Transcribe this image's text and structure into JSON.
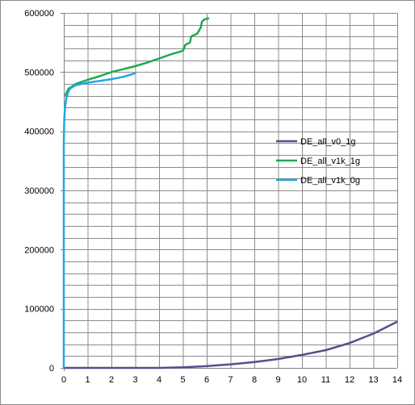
{
  "chart_data": {
    "type": "line",
    "title": "",
    "xlabel": "",
    "ylabel": "",
    "xlim": [
      0,
      14
    ],
    "ylim": [
      0,
      600000
    ],
    "x_ticks": [
      "0",
      "1",
      "2",
      "3",
      "4",
      "5",
      "6",
      "7",
      "8",
      "9",
      "10",
      "11",
      "12",
      "13",
      "14"
    ],
    "y_ticks": [
      "0",
      "100000",
      "200000",
      "300000",
      "400000",
      "500000",
      "600000"
    ],
    "grid": true,
    "legend_position": "right",
    "series": [
      {
        "name": "DE_all_v0_1g",
        "color": "#5f4b8b",
        "points": [
          [
            0,
            0
          ],
          [
            4,
            0
          ],
          [
            5,
            1000
          ],
          [
            6,
            3000
          ],
          [
            7,
            6000
          ],
          [
            8,
            10000
          ],
          [
            9,
            15000
          ],
          [
            10,
            22000
          ],
          [
            11,
            30000
          ],
          [
            12,
            42000
          ],
          [
            13,
            58000
          ],
          [
            14,
            78000
          ]
        ]
      },
      {
        "name": "DE_all_v1k_1g",
        "color": "#20a852",
        "points": [
          [
            0.05,
            460000
          ],
          [
            0.2,
            472000
          ],
          [
            0.5,
            480000
          ],
          [
            1,
            487000
          ],
          [
            1.5,
            493000
          ],
          [
            2,
            500000
          ],
          [
            2.5,
            505000
          ],
          [
            3,
            510000
          ],
          [
            3.5,
            516000
          ],
          [
            4,
            523000
          ],
          [
            4.5,
            530000
          ],
          [
            5.0,
            536000
          ],
          [
            5.05,
            540000
          ],
          [
            5.1,
            546000
          ],
          [
            5.3,
            550000
          ],
          [
            5.35,
            560000
          ],
          [
            5.6,
            565000
          ],
          [
            5.75,
            575000
          ],
          [
            5.8,
            585000
          ],
          [
            5.9,
            589000
          ],
          [
            6.0,
            590000
          ],
          [
            6.1,
            591000
          ]
        ]
      },
      {
        "name": "DE_all_v1k_0g",
        "color": "#1ca9e6",
        "points": [
          [
            0,
            0
          ],
          [
            0,
            200000
          ],
          [
            0,
            380000
          ],
          [
            0.02,
            420000
          ],
          [
            0.05,
            440000
          ],
          [
            0.1,
            455000
          ],
          [
            0.2,
            468000
          ],
          [
            0.3,
            473000
          ],
          [
            0.5,
            478000
          ],
          [
            1,
            482000
          ],
          [
            1.5,
            485000
          ],
          [
            2,
            488000
          ],
          [
            2.5,
            492000
          ],
          [
            3,
            498000
          ]
        ]
      }
    ]
  }
}
